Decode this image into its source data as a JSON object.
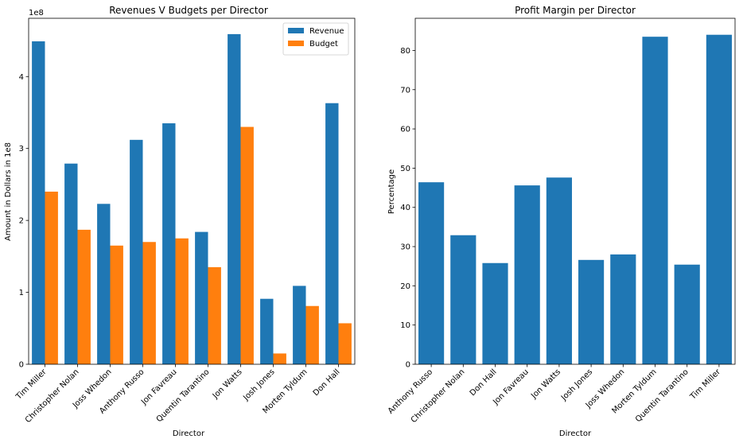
{
  "chart_data": [
    {
      "type": "bar",
      "title": "Revenues V Budgets per Director",
      "xlabel": "Director",
      "ylabel": "Amount in Dollars in 1e8",
      "offset_text": "1e8",
      "categories": [
        "Tim Miller",
        "Christopher Nolan",
        "Joss Whedon",
        "Anthony Russo",
        "Jon Favreau",
        "Quentin Tarantino",
        "Jon Watts",
        "Josh Jones",
        "Morten Tyldum",
        "Don Hall"
      ],
      "series": [
        {
          "name": "Revenue",
          "color": "#1f77b4",
          "values": [
            449,
            279,
            223,
            312,
            335,
            184,
            459,
            91,
            109,
            363
          ]
        },
        {
          "name": "Budget",
          "color": "#ff7f0e",
          "values": [
            240,
            187,
            165,
            170,
            175,
            135,
            330,
            15,
            81,
            57
          ]
        }
      ],
      "value_unit_scale": 1000000,
      "ylim": [
        0,
        481
      ],
      "yticks": [
        {
          "value": 0,
          "label": "0"
        },
        {
          "value": 100,
          "label": "1"
        },
        {
          "value": 200,
          "label": "2"
        },
        {
          "value": 300,
          "label": "3"
        },
        {
          "value": 400,
          "label": "4"
        }
      ],
      "legend": "top-right",
      "grid": false
    },
    {
      "type": "bar",
      "title": "Profit Margin per Director",
      "xlabel": "Director",
      "ylabel": "Percentage",
      "categories": [
        "Anthony Russo",
        "Christopher Nolan",
        "Don Hall",
        "Jon Favreau",
        "Jon Watts",
        "Josh Jones",
        "Joss Whedon",
        "Morten Tyldum",
        "Quentin Tarantino",
        "Tim Miller"
      ],
      "series": [
        {
          "name": "",
          "color": "#1f77b4",
          "values": [
            46.4,
            32.9,
            25.8,
            45.6,
            47.6,
            26.6,
            28.0,
            83.5,
            25.4,
            84.0
          ]
        }
      ],
      "ylim": [
        0,
        88.2
      ],
      "yticks": [
        {
          "value": 0,
          "label": "0"
        },
        {
          "value": 10,
          "label": "10"
        },
        {
          "value": 20,
          "label": "20"
        },
        {
          "value": 30,
          "label": "30"
        },
        {
          "value": 40,
          "label": "40"
        },
        {
          "value": 50,
          "label": "50"
        },
        {
          "value": 60,
          "label": "60"
        },
        {
          "value": 70,
          "label": "70"
        },
        {
          "value": 80,
          "label": "80"
        }
      ],
      "legend": "none",
      "grid": false
    }
  ]
}
